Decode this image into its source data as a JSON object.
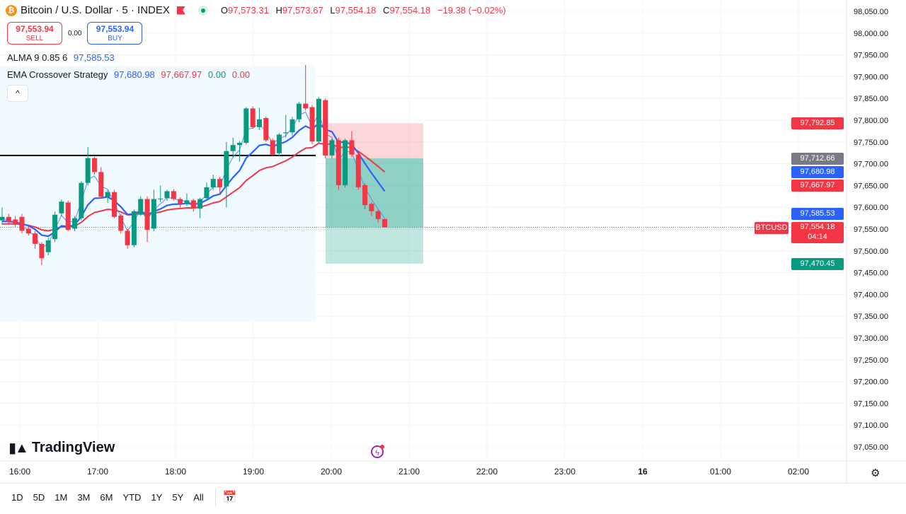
{
  "header": {
    "symbol_title": "Bitcoin / U.S. Dollar · 5 · INDEX",
    "ohlc": {
      "o_label": "O",
      "o": "97,573.31",
      "h_label": "H",
      "h": "97,573.67",
      "l_label": "L",
      "l": "97,554.18",
      "c_label": "C",
      "c": "97,554.18",
      "change": "−19.38 (−0.02%)"
    },
    "icons": [
      "bitcoin-icon",
      "flag-icon",
      "market-open-dot-icon"
    ]
  },
  "trade": {
    "sell_price": "97,553.94",
    "sell_label": "SELL",
    "spread": "0.00",
    "buy_price": "97,553.94",
    "buy_label": "BUY"
  },
  "indicators": [
    {
      "name": "ALMA 9 0.85 6",
      "values": [
        "97,585.53"
      ]
    },
    {
      "name": "EMA Crossover Strategy",
      "values": [
        "97,680.98",
        "97,667.97",
        "0.00",
        "0.00"
      ]
    }
  ],
  "collapse_label": "^",
  "colors": {
    "up": "#089981",
    "down": "#f23645",
    "ema_fast": "#2962ff",
    "ema_slow": "#f23645",
    "alma": "#5b8def",
    "session_bg": "#f0f9ff",
    "tp_zone": "#089981",
    "sl_zone": "#f23645"
  },
  "price_axis": {
    "ticks": [
      "98,050.00",
      "98,000.00",
      "97,950.00",
      "97,900.00",
      "97,850.00",
      "97,800.00",
      "97,750.00",
      "97,700.00",
      "97,650.00",
      "97,600.00",
      "97,550.00",
      "97,500.00",
      "97,450.00",
      "97,400.00",
      "97,350.00",
      "97,300.00",
      "97,250.00",
      "97,200.00",
      "97,150.00",
      "97,100.00",
      "97,050.00"
    ],
    "tags": [
      {
        "value": "97,792.85",
        "color": "#f23645"
      },
      {
        "value": "97,712.66",
        "color": "#787b86"
      },
      {
        "value": "97,680.98",
        "color": "#2962ff"
      },
      {
        "value": "97,667.97",
        "color": "#f23645"
      },
      {
        "value": "97,585.53",
        "color": "#2962ff"
      },
      {
        "value": "97,470.45",
        "color": "#089981"
      }
    ],
    "last_price": {
      "symbol": "BTCUSD",
      "value": "97,554.18",
      "countdown": "04:14",
      "color": "#f23645"
    }
  },
  "time_axis": [
    "16:00",
    "17:00",
    "18:00",
    "19:00",
    "20:00",
    "21:00",
    "22:00",
    "23:00",
    "16",
    "01:00",
    "02:00"
  ],
  "chart_data": {
    "type": "candlestick",
    "interval": "5",
    "ylim": [
      97030,
      98070
    ],
    "candles": [
      [
        97570,
        97600,
        97560,
        97578
      ],
      [
        97578,
        97585,
        97560,
        97567
      ],
      [
        97572,
        97580,
        97555,
        97560
      ],
      [
        97578,
        97585,
        97540,
        97546
      ],
      [
        97551,
        97556,
        97535,
        97540
      ],
      [
        97540,
        97545,
        97505,
        97516
      ],
      [
        97516,
        97520,
        97467,
        97483
      ],
      [
        97497,
        97530,
        97490,
        97524
      ],
      [
        97527,
        97590,
        97520,
        97583
      ],
      [
        97586,
        97618,
        97580,
        97613
      ],
      [
        97611,
        97615,
        97545,
        97548
      ],
      [
        97551,
        97580,
        97545,
        97575
      ],
      [
        97575,
        97660,
        97570,
        97656
      ],
      [
        97656,
        97738,
        97650,
        97713
      ],
      [
        97713,
        97716,
        97675,
        97681
      ],
      [
        97681,
        97692,
        97620,
        97624
      ],
      [
        97624,
        97640,
        97610,
        97635
      ],
      [
        97635,
        97640,
        97575,
        97578
      ],
      [
        97581,
        97585,
        97540,
        97546
      ],
      [
        97546,
        97550,
        97505,
        97513
      ],
      [
        97513,
        97595,
        97508,
        97591
      ],
      [
        97583,
        97625,
        97580,
        97619
      ],
      [
        97619,
        97625,
        97520,
        97548
      ],
      [
        97551,
        97640,
        97545,
        97619
      ],
      [
        97619,
        97650,
        97612,
        97620
      ],
      [
        97621,
        97640,
        97615,
        97637
      ],
      [
        97637,
        97642,
        97615,
        97619
      ],
      [
        97619,
        97623,
        97600,
        97608
      ],
      [
        97608,
        97632,
        97603,
        97616
      ],
      [
        97616,
        97620,
        97590,
        97597
      ],
      [
        97597,
        97622,
        97575,
        97619
      ],
      [
        97621,
        97657,
        97615,
        97646
      ],
      [
        97646,
        97675,
        97640,
        97665
      ],
      [
        97665,
        97670,
        97632,
        97646
      ],
      [
        97648,
        97750,
        97600,
        97729
      ],
      [
        97729,
        97760,
        97715,
        97743
      ],
      [
        97743,
        97752,
        97705,
        97748
      ],
      [
        97748,
        97830,
        97744,
        97827
      ],
      [
        97827,
        97832,
        97780,
        97784
      ],
      [
        97784,
        97828,
        97778,
        97802
      ],
      [
        97805,
        97808,
        97750,
        97754
      ],
      [
        97754,
        97758,
        97718,
        97721
      ],
      [
        97724,
        97770,
        97718,
        97767
      ],
      [
        97770,
        97812,
        97760,
        97772
      ],
      [
        97772,
        97808,
        97765,
        97802
      ],
      [
        97802,
        97842,
        97795,
        97838
      ],
      [
        97838,
        97927,
        97822,
        97827
      ],
      [
        97830,
        97835,
        97745,
        97751
      ],
      [
        97751,
        97853,
        97748,
        97849
      ],
      [
        97846,
        97850,
        97712,
        97719
      ],
      [
        97719,
        97758,
        97712,
        97754
      ],
      [
        97754,
        97760,
        97640,
        97651
      ],
      [
        97651,
        97758,
        97645,
        97754
      ],
      [
        97754,
        97775,
        97715,
        97721
      ],
      [
        97721,
        97725,
        97640,
        97646
      ],
      [
        97651,
        97655,
        97595,
        97605
      ],
      [
        97608,
        97612,
        97580,
        97591
      ],
      [
        97591,
        97595,
        97565,
        97573
      ],
      [
        97573,
        97574,
        97554,
        97554
      ]
    ],
    "horizontal_line": 97719,
    "position": {
      "type": "short",
      "target_top": 97792.85,
      "entry": 97712.66,
      "stop_bottom": 97470.45
    }
  },
  "branding": {
    "logo": "TradingView"
  },
  "bottom_toolbar": {
    "ranges": [
      "1D",
      "5D",
      "1M",
      "3M",
      "6M",
      "YTD",
      "1Y",
      "5Y",
      "All"
    ]
  }
}
